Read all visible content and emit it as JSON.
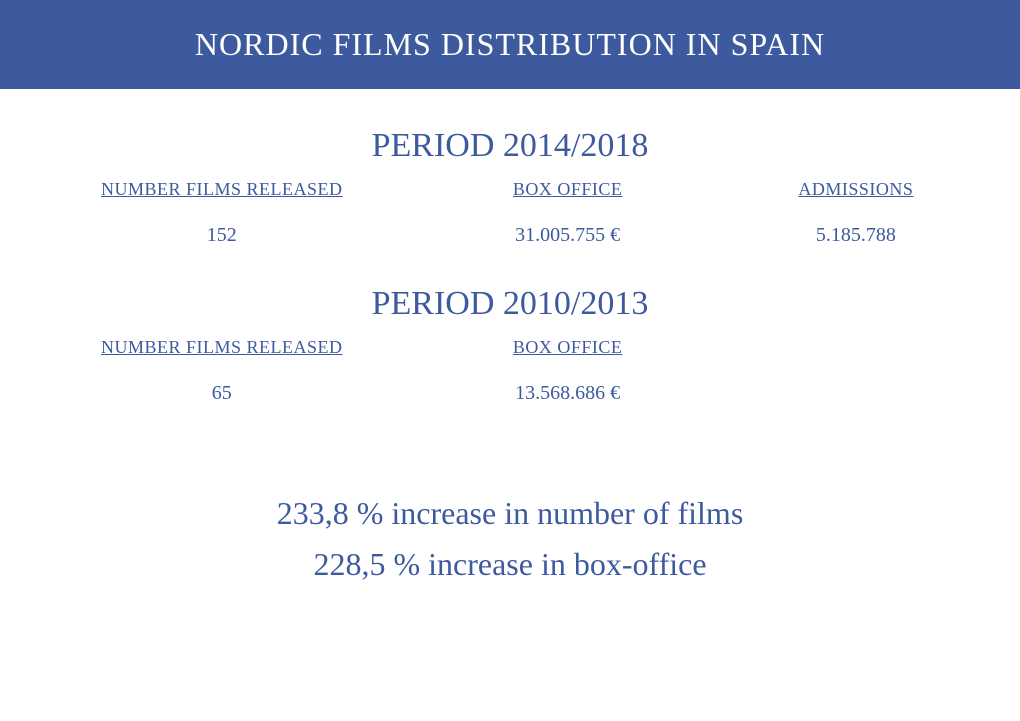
{
  "header_title": "NORDIC FILMS DISTRIBUTION IN SPAIN",
  "period1": {
    "title": "PERIOD 2014/2018",
    "cols": [
      {
        "header": "NUMBER FILMS RELEASED",
        "value": "152"
      },
      {
        "header": "BOX OFFICE",
        "value": "31.005.755 €"
      },
      {
        "header": "ADMISSIONS",
        "value": "5.185.788"
      }
    ]
  },
  "period2": {
    "title": "PERIOD 2010/2013",
    "cols": [
      {
        "header": "NUMBER FILMS RELEASED",
        "value": "65"
      },
      {
        "header": "BOX OFFICE",
        "value": "13.568.686 €"
      }
    ]
  },
  "summary": {
    "line1": "233,8 %  increase in number of films",
    "line2": "228,5 % increase in box-office"
  },
  "colors": {
    "brand": "#3d5a9e",
    "background": "#ffffff"
  }
}
